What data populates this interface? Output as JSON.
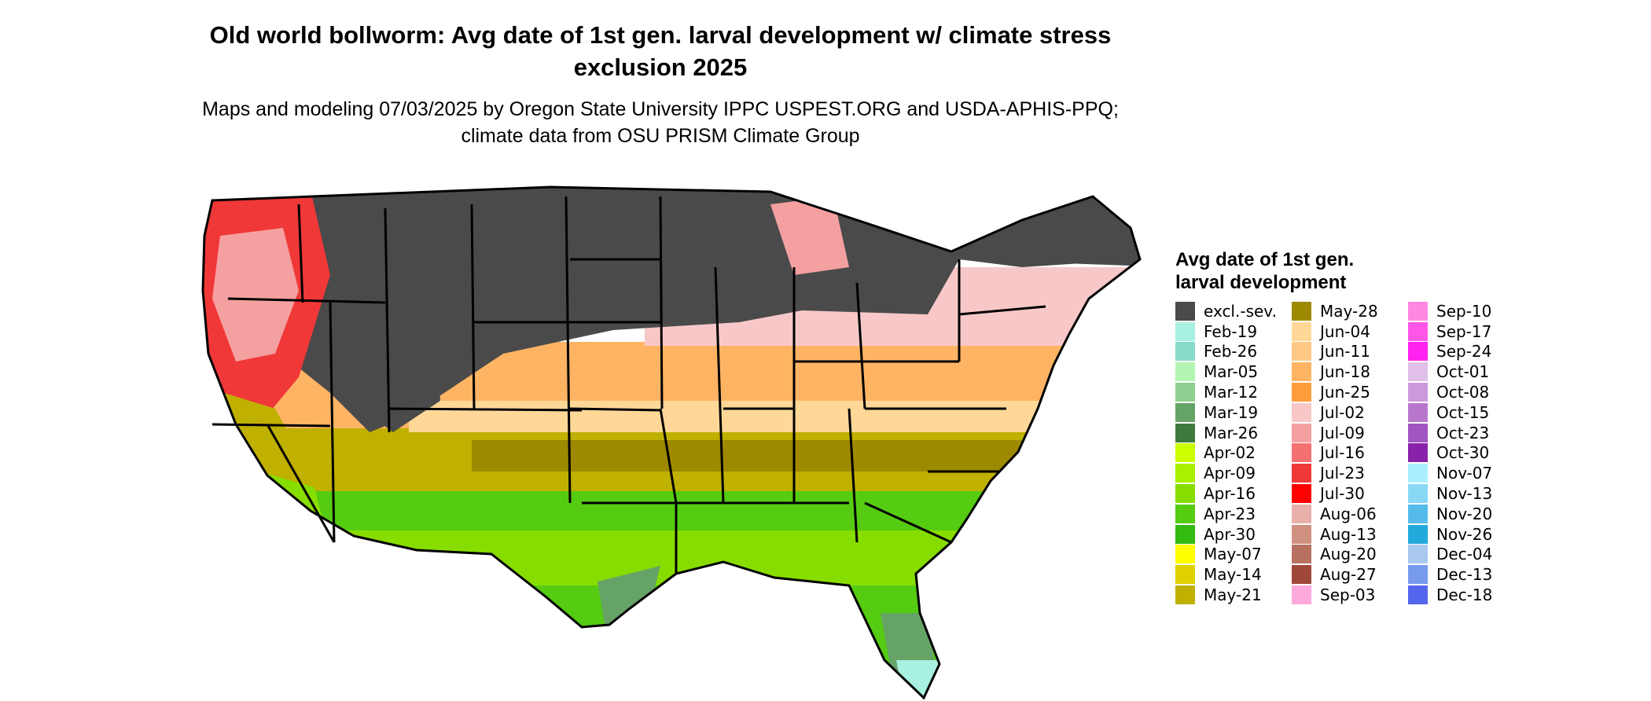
{
  "title": "Old world bollworm: Avg date of 1st gen. larval development w/ climate stress exclusion 2025",
  "subtitle": "Maps and modeling 07/03/2025 by Oregon State University IPPC USPEST.ORG and USDA-APHIS-PPQ; climate data from OSU PRISM Climate Group",
  "legend": {
    "title": "Avg date of 1st gen. larval development",
    "columns": [
      [
        {
          "label": "excl.-sev.",
          "color": "#4a4a4a"
        },
        {
          "label": "Feb-19",
          "color": "#a8f0e0"
        },
        {
          "label": "Feb-26",
          "color": "#86dcc6"
        },
        {
          "label": "Mar-05",
          "color": "#b4f5b4"
        },
        {
          "label": "Mar-12",
          "color": "#8fcf8f"
        },
        {
          "label": "Mar-19",
          "color": "#66a366"
        },
        {
          "label": "Mar-26",
          "color": "#3e7a3e"
        },
        {
          "label": "Apr-02",
          "color": "#ccff00"
        },
        {
          "label": "Apr-09",
          "color": "#aaee00"
        },
        {
          "label": "Apr-16",
          "color": "#88dd00"
        },
        {
          "label": "Apr-23",
          "color": "#55cc11"
        },
        {
          "label": "Apr-30",
          "color": "#33bb11"
        },
        {
          "label": "May-07",
          "color": "#ffff00"
        },
        {
          "label": "May-14",
          "color": "#e0d000"
        },
        {
          "label": "May-21",
          "color": "#c0b000"
        }
      ],
      [
        {
          "label": "May-28",
          "color": "#9e8a00"
        },
        {
          "label": "Jun-04",
          "color": "#ffd898"
        },
        {
          "label": "Jun-11",
          "color": "#ffc885"
        },
        {
          "label": "Jun-18",
          "color": "#ffb464"
        },
        {
          "label": "Jun-25",
          "color": "#ff9c3c"
        },
        {
          "label": "Jul-02",
          "color": "#f8c8c8"
        },
        {
          "label": "Jul-09",
          "color": "#f5a0a0"
        },
        {
          "label": "Jul-16",
          "color": "#f57070"
        },
        {
          "label": "Jul-23",
          "color": "#f03838"
        },
        {
          "label": "Jul-30",
          "color": "#ff0000"
        },
        {
          "label": "Aug-06",
          "color": "#e8b0a8"
        },
        {
          "label": "Aug-13",
          "color": "#d09080"
        },
        {
          "label": "Aug-20",
          "color": "#b87060"
        },
        {
          "label": "Aug-27",
          "color": "#a04838"
        },
        {
          "label": "Sep-03",
          "color": "#ffaadd"
        }
      ],
      [
        {
          "label": "Sep-10",
          "color": "#ff88e0"
        },
        {
          "label": "Sep-17",
          "color": "#ff55e8"
        },
        {
          "label": "Sep-24",
          "color": "#ff22f0"
        },
        {
          "label": "Oct-01",
          "color": "#e0c0e8"
        },
        {
          "label": "Oct-08",
          "color": "#cc99dd"
        },
        {
          "label": "Oct-15",
          "color": "#b877cc"
        },
        {
          "label": "Oct-23",
          "color": "#a055c0"
        },
        {
          "label": "Oct-30",
          "color": "#8822aa"
        },
        {
          "label": "Nov-07",
          "color": "#aaeeff"
        },
        {
          "label": "Nov-13",
          "color": "#88d8f5"
        },
        {
          "label": "Nov-20",
          "color": "#55bbe8"
        },
        {
          "label": "Nov-26",
          "color": "#22aadd"
        },
        {
          "label": "Dec-04",
          "color": "#a8c8f0"
        },
        {
          "label": "Dec-13",
          "color": "#7799ee"
        },
        {
          "label": "Dec-18",
          "color": "#5566ee"
        }
      ]
    ]
  }
}
